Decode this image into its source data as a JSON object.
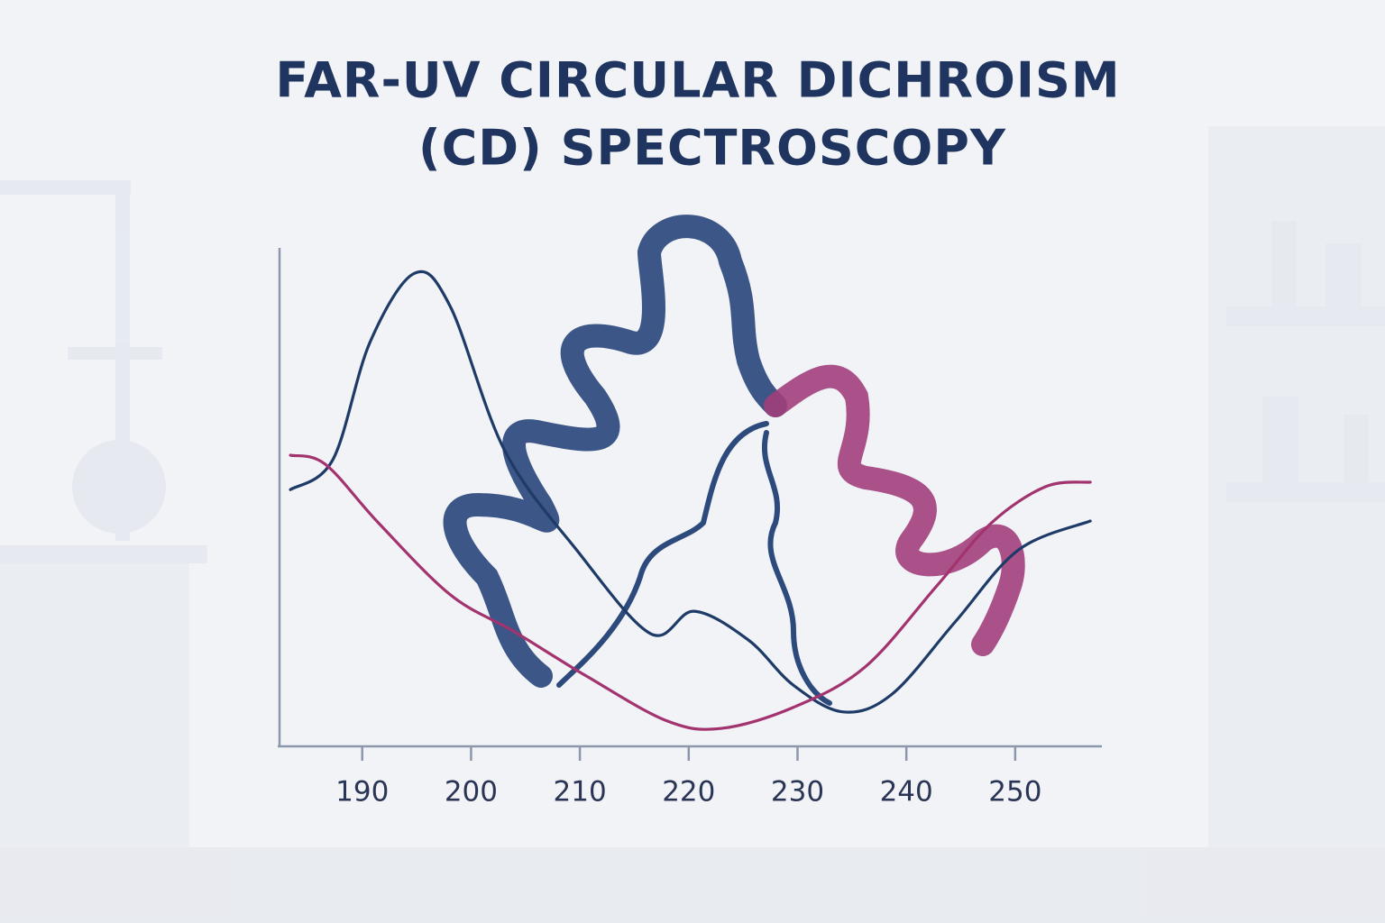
{
  "chart_data": {
    "type": "line",
    "title": [
      "FAR-UV CIRCULAR DICHROISM",
      "(CD) SPECTROSCOPY"
    ],
    "xlim": [
      182.4,
      257.8
    ],
    "xticks": [
      190,
      200,
      210,
      220,
      230,
      240,
      250
    ],
    "ylim": [
      0,
      100
    ],
    "series": [
      {
        "color": "#1e3a66",
        "x": [
          183.4,
          187.3,
          190.7,
          194.8,
          198.1,
          203.1,
          209.7,
          216.5,
          220.5,
          225.5,
          229.6,
          234.2,
          238.7,
          244.5,
          250.3,
          256.9
        ],
        "values": [
          51.5,
          57.5,
          81.0,
          94.9,
          88.2,
          59.3,
          39.4,
          22.6,
          27.1,
          21.3,
          12.3,
          6.9,
          10.5,
          25.0,
          39.4,
          45.2
        ]
      },
      {
        "color": "#a3336e",
        "x": [
          183.4,
          186.6,
          191.5,
          198.1,
          203.9,
          210.6,
          218.0,
          223.0,
          229.6,
          236.2,
          242.8,
          247.8,
          252.8,
          256.9
        ],
        "values": [
          58.4,
          56.6,
          44.8,
          30.4,
          23.1,
          14.1,
          5.1,
          3.6,
          7.8,
          15.9,
          32.2,
          44.8,
          52.1,
          53.0
        ]
      }
    ]
  }
}
